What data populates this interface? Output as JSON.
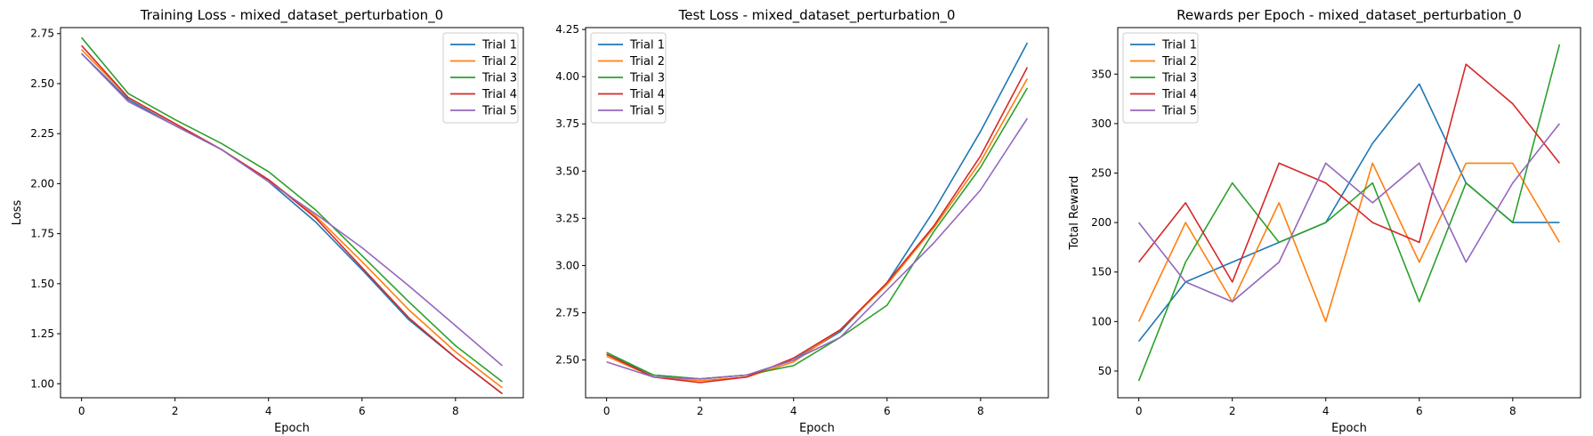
{
  "chart_data": [
    {
      "type": "line",
      "title": "Training Loss - mixed_dataset_perturbation_0",
      "xlabel": "Epoch",
      "ylabel": "Loss",
      "xlim": [
        -0.45,
        9.45
      ],
      "ylim": [
        0.93,
        2.78
      ],
      "xticks": [
        0,
        2,
        4,
        6,
        8
      ],
      "xtick_labels": [
        "0",
        "2",
        "4",
        "6",
        "8"
      ],
      "yticks": [
        1.0,
        1.25,
        1.5,
        1.75,
        2.0,
        2.25,
        2.5,
        2.75
      ],
      "ytick_labels": [
        "1.00",
        "1.25",
        "1.50",
        "1.75",
        "2.00",
        "2.25",
        "2.50",
        "2.75"
      ],
      "legend_position": "upper-right",
      "x": [
        0,
        1,
        2,
        3,
        4,
        5,
        6,
        7,
        8,
        9
      ],
      "series": [
        {
          "name": "Trial 1",
          "color": "#1f77b4",
          "values": [
            2.65,
            2.42,
            2.29,
            2.17,
            2.01,
            1.81,
            1.57,
            1.32,
            1.13,
            0.95
          ]
        },
        {
          "name": "Trial 2",
          "color": "#ff7f0e",
          "values": [
            2.67,
            2.43,
            2.3,
            2.17,
            2.02,
            1.84,
            1.61,
            1.37,
            1.16,
            0.98
          ]
        },
        {
          "name": "Trial 3",
          "color": "#2ca02c",
          "values": [
            2.73,
            2.45,
            2.32,
            2.2,
            2.06,
            1.87,
            1.64,
            1.41,
            1.19,
            1.01
          ]
        },
        {
          "name": "Trial 4",
          "color": "#d62728",
          "values": [
            2.69,
            2.43,
            2.3,
            2.17,
            2.02,
            1.83,
            1.58,
            1.33,
            1.13,
            0.95
          ]
        },
        {
          "name": "Trial 5",
          "color": "#9467bd",
          "values": [
            2.65,
            2.41,
            2.29,
            2.17,
            2.01,
            1.85,
            1.68,
            1.49,
            1.29,
            1.09
          ]
        }
      ]
    },
    {
      "type": "line",
      "title": "Test Loss - mixed_dataset_perturbation_0",
      "xlabel": "Epoch",
      "ylabel": "",
      "xlim": [
        -0.45,
        9.45
      ],
      "ylim": [
        2.3,
        4.26
      ],
      "xticks": [
        0,
        2,
        4,
        6,
        8
      ],
      "xtick_labels": [
        "0",
        "2",
        "4",
        "6",
        "8"
      ],
      "yticks": [
        2.5,
        2.75,
        3.0,
        3.25,
        3.5,
        3.75,
        4.0,
        4.25
      ],
      "ytick_labels": [
        "2.50",
        "2.75",
        "3.00",
        "3.25",
        "3.50",
        "3.75",
        "4.00",
        "4.25"
      ],
      "legend_position": "upper-left",
      "x": [
        0,
        1,
        2,
        3,
        4,
        5,
        6,
        7,
        8,
        9
      ],
      "series": [
        {
          "name": "Trial 1",
          "color": "#1f77b4",
          "values": [
            2.53,
            2.42,
            2.4,
            2.42,
            2.5,
            2.65,
            2.91,
            3.29,
            3.71,
            4.18
          ]
        },
        {
          "name": "Trial 2",
          "color": "#ff7f0e",
          "values": [
            2.52,
            2.41,
            2.39,
            2.41,
            2.49,
            2.66,
            2.9,
            3.2,
            3.55,
            3.99
          ]
        },
        {
          "name": "Trial 3",
          "color": "#2ca02c",
          "values": [
            2.54,
            2.42,
            2.4,
            2.42,
            2.47,
            2.62,
            2.79,
            3.18,
            3.52,
            3.94
          ]
        },
        {
          "name": "Trial 4",
          "color": "#d62728",
          "values": [
            2.53,
            2.41,
            2.38,
            2.41,
            2.51,
            2.66,
            2.91,
            3.21,
            3.58,
            4.05
          ]
        },
        {
          "name": "Trial 5",
          "color": "#9467bd",
          "values": [
            2.49,
            2.41,
            2.4,
            2.42,
            2.5,
            2.62,
            2.87,
            3.12,
            3.4,
            3.78
          ]
        }
      ]
    },
    {
      "type": "line",
      "title": "Rewards per Epoch - mixed_dataset_perturbation_0",
      "xlabel": "Epoch",
      "ylabel": "Total Reward",
      "xlim": [
        -0.45,
        9.45
      ],
      "ylim": [
        23,
        397
      ],
      "xticks": [
        0,
        2,
        4,
        6,
        8
      ],
      "xtick_labels": [
        "0",
        "2",
        "4",
        "6",
        "8"
      ],
      "yticks": [
        50,
        100,
        150,
        200,
        250,
        300,
        350
      ],
      "ytick_labels": [
        "50",
        "100",
        "150",
        "200",
        "250",
        "300",
        "350"
      ],
      "legend_position": "upper-left",
      "x": [
        0,
        1,
        2,
        3,
        4,
        5,
        6,
        7,
        8,
        9
      ],
      "series": [
        {
          "name": "Trial 1",
          "color": "#1f77b4",
          "values": [
            80,
            140,
            160,
            180,
            200,
            280,
            340,
            240,
            200,
            200
          ]
        },
        {
          "name": "Trial 2",
          "color": "#ff7f0e",
          "values": [
            100,
            200,
            120,
            220,
            100,
            260,
            160,
            260,
            260,
            180
          ]
        },
        {
          "name": "Trial 3",
          "color": "#2ca02c",
          "values": [
            40,
            160,
            240,
            180,
            200,
            240,
            120,
            240,
            200,
            380
          ]
        },
        {
          "name": "Trial 4",
          "color": "#d62728",
          "values": [
            160,
            220,
            140,
            260,
            240,
            200,
            180,
            360,
            320,
            260
          ]
        },
        {
          "name": "Trial 5",
          "color": "#9467bd",
          "values": [
            200,
            140,
            120,
            160,
            260,
            220,
            260,
            160,
            240,
            300
          ]
        }
      ]
    }
  ]
}
